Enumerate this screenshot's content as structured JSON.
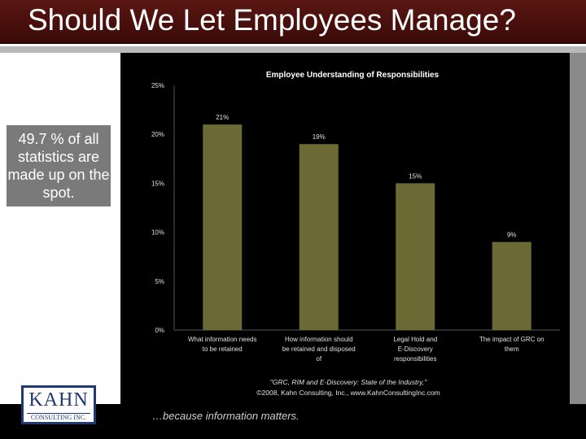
{
  "slide": {
    "title": "Should We Let Employees Manage?",
    "note": "49.7 % of all statistics are made up on the spot.",
    "logo_name": "KAHN",
    "logo_sub": "CONSULTING INC.",
    "tagline": "…because information matters."
  },
  "chart_data": {
    "type": "bar",
    "title": "Employee Understanding of Responsibilities",
    "categories": [
      "What information needs to be retained",
      "How information should be retained and disposed of",
      "Legal Hold and E-Discovery responsibilities",
      "The impact of GRC on them"
    ],
    "values": [
      21,
      19,
      15,
      9
    ],
    "data_labels": [
      "21%",
      "19%",
      "15%",
      "9%"
    ],
    "ylim": [
      0,
      25
    ],
    "yticks": [
      0,
      5,
      10,
      15,
      20,
      25
    ],
    "ytick_labels": [
      "0%",
      "5%",
      "10%",
      "15%",
      "20%",
      "25%"
    ],
    "grid": false,
    "legend": "none",
    "bar_color": "#6b6a34",
    "source_line1": "\"GRC, RIM and E-Discovery: State of the Industry,\"",
    "source_line2": "©2008, Kahn Consulting, Inc., www.KahnConsultingInc.com"
  }
}
